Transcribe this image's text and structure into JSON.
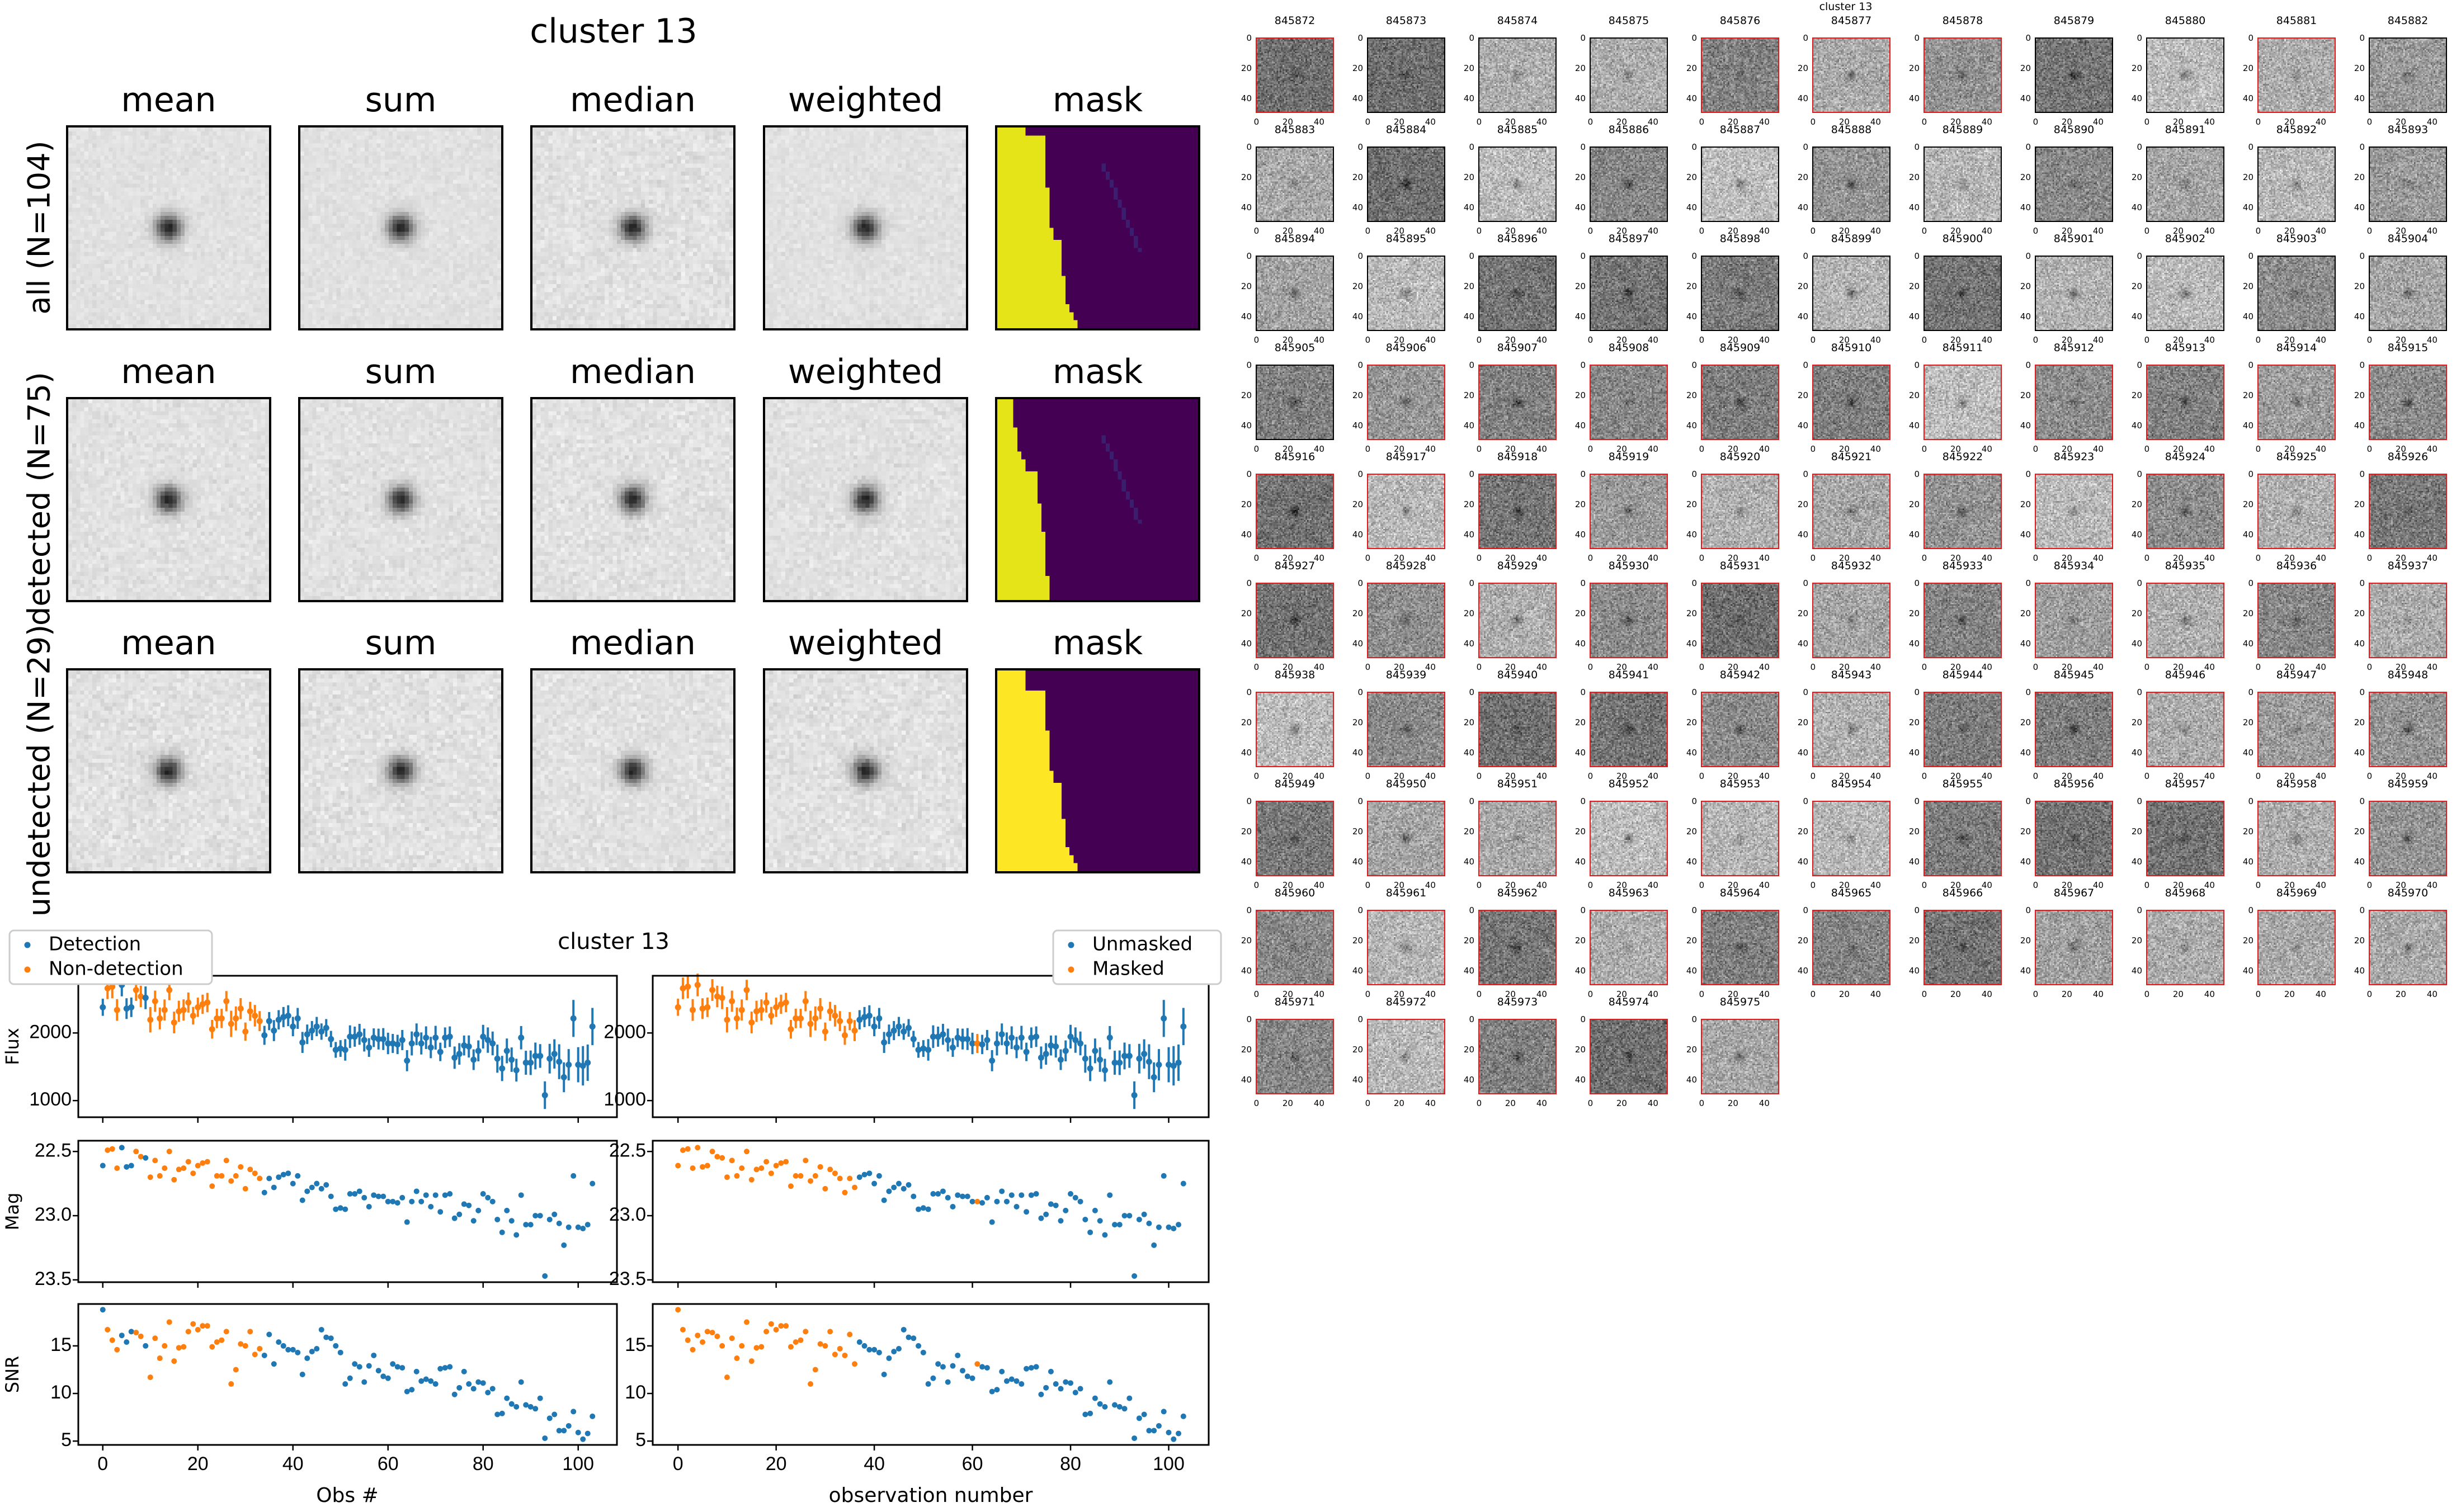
{
  "figure_title": "cluster 13",
  "stack_grid": {
    "columns": [
      "mean",
      "sum",
      "median",
      "weighted",
      "mask"
    ],
    "rows": [
      "all (N=104)",
      "detected (N=75)",
      "undetected (N=29)"
    ],
    "mask_colors": {
      "masked": "#e5e419",
      "unmasked": "#440154"
    }
  },
  "thumbnails": {
    "title": "cluster 13",
    "x_ticks": [
      "0",
      "20",
      "40"
    ],
    "y_ticks": [
      "0",
      "20",
      "40"
    ],
    "highlight_color": "#e31a1c",
    "ids": [
      "845872",
      "845873",
      "845874",
      "845875",
      "845876",
      "845877",
      "845878",
      "845879",
      "845880",
      "845881",
      "845882",
      "845883",
      "845884",
      "845885",
      "845886",
      "845887",
      "845888",
      "845889",
      "845890",
      "845891",
      "845892",
      "845893",
      "845894",
      "845895",
      "845896",
      "845897",
      "845898",
      "845899",
      "845900",
      "845901",
      "845902",
      "845903",
      "845904",
      "845905",
      "845906",
      "845907",
      "845908",
      "845909",
      "845910",
      "845911",
      "845912",
      "845913",
      "845914",
      "845915",
      "845916",
      "845917",
      "845918",
      "845919",
      "845920",
      "845921",
      "845922",
      "845923",
      "845924",
      "845925",
      "845926",
      "845927",
      "845928",
      "845929",
      "845930",
      "845931",
      "845932",
      "845933",
      "845934",
      "845935",
      "845936",
      "845937",
      "845938",
      "845939",
      "845940",
      "845941",
      "845942",
      "845943",
      "845944",
      "845945",
      "845946",
      "845947",
      "845948",
      "845949",
      "845950",
      "845951",
      "845952",
      "845953",
      "845954",
      "845955",
      "845956",
      "845957",
      "845958",
      "845959",
      "845960",
      "845961",
      "845962",
      "845963",
      "845964",
      "845965",
      "845966",
      "845967",
      "845968",
      "845969",
      "845970",
      "845971",
      "845972",
      "845973",
      "845974",
      "845975"
    ]
  },
  "chart_data": {
    "type": "scatter",
    "title": "cluster 13",
    "colors": {
      "blue": "#1f77b4",
      "orange": "#ff7f0e"
    },
    "left_legend": [
      "Detection",
      "Non-detection"
    ],
    "right_legend": [
      "Unmasked",
      "Masked"
    ],
    "left_xlabel": "Obs #",
    "right_xlabel": "observation number",
    "ylabels": {
      "flux": "Flux",
      "mag": "Mag",
      "snr": "SNR"
    },
    "xlim": [
      -5.15,
      108.15
    ],
    "x_ticks": [
      0,
      20,
      40,
      60,
      80,
      100
    ],
    "ylim": {
      "flux": [
        754,
        2846
      ],
      "mag": [
        23.518,
        22.416
      ],
      "snr": [
        4.6,
        19.4
      ]
    },
    "y_ticks": {
      "flux": [
        1000,
        2000
      ],
      "mag": [
        "22.5",
        "23.0",
        "23.5"
      ],
      "snr": [
        5,
        10,
        15
      ]
    },
    "detected": [
      1,
      0,
      0,
      0,
      1,
      1,
      1,
      0,
      0,
      1,
      0,
      0,
      0,
      0,
      0,
      0,
      0,
      0,
      0,
      0,
      0,
      0,
      0,
      0,
      0,
      0,
      0,
      0,
      0,
      0,
      0,
      0,
      0,
      0,
      1,
      1,
      1,
      1,
      1,
      1,
      1,
      1,
      1,
      1,
      1,
      1,
      1,
      1,
      1,
      1,
      1,
      1,
      1,
      1,
      1,
      1,
      1,
      1,
      1,
      1,
      1,
      1,
      1,
      1,
      1,
      1,
      1,
      1,
      1,
      1,
      1,
      1,
      1,
      1,
      1,
      1,
      1,
      1,
      1,
      1,
      1,
      1,
      1,
      1,
      1,
      1,
      1,
      1,
      1,
      1,
      1,
      1,
      1,
      1,
      1,
      1,
      1,
      1,
      1,
      1,
      1,
      1,
      1,
      1
    ],
    "masked": [
      1,
      1,
      1,
      1,
      1,
      1,
      1,
      1,
      1,
      1,
      1,
      1,
      1,
      1,
      1,
      1,
      1,
      1,
      1,
      1,
      1,
      1,
      1,
      1,
      1,
      1,
      1,
      1,
      1,
      1,
      1,
      1,
      1,
      1,
      1,
      1,
      1,
      0,
      0,
      0,
      0,
      0,
      0,
      0,
      0,
      0,
      0,
      0,
      0,
      0,
      0,
      0,
      0,
      0,
      0,
      0,
      0,
      0,
      0,
      0,
      0,
      1,
      0,
      0,
      0,
      0,
      0,
      0,
      0,
      0,
      0,
      0,
      0,
      0,
      0,
      0,
      0,
      0,
      0,
      0,
      0,
      0,
      0,
      0,
      0,
      0,
      0,
      0,
      0,
      0,
      0,
      0,
      0,
      0,
      0,
      0,
      0,
      0,
      0,
      0,
      0,
      0,
      0,
      0
    ],
    "mag": [
      22.61,
      22.49,
      22.48,
      22.63,
      22.47,
      22.62,
      22.61,
      22.5,
      22.54,
      22.55,
      22.7,
      22.57,
      22.69,
      22.63,
      22.5,
      22.72,
      22.64,
      22.63,
      22.58,
      22.67,
      22.61,
      22.59,
      22.58,
      22.77,
      22.69,
      22.69,
      22.57,
      22.73,
      22.69,
      22.62,
      22.79,
      22.64,
      22.67,
      22.71,
      22.82,
      22.71,
      22.78,
      22.7,
      22.68,
      22.67,
      22.75,
      22.69,
      22.88,
      22.81,
      22.78,
      22.75,
      22.79,
      22.76,
      22.85,
      22.95,
      22.94,
      22.95,
      22.83,
      22.83,
      22.81,
      22.86,
      22.93,
      22.84,
      22.85,
      22.85,
      22.89,
      22.89,
      22.9,
      22.86,
      23.05,
      22.89,
      22.81,
      22.89,
      22.84,
      22.93,
      22.84,
      22.97,
      22.84,
      22.83,
      23.02,
      22.99,
      22.91,
      22.92,
      23.04,
      22.96,
      22.83,
      22.86,
      22.89,
      23.03,
      23.13,
      22.96,
      23.04,
      23.15,
      22.84,
      23.07,
      23.07,
      23.0,
      23.0,
      23.47,
      23.03,
      22.99,
      23.06,
      23.23,
      23.09,
      22.69,
      23.09,
      23.1,
      23.07,
      22.75
    ],
    "flux": [
      2380,
      2660,
      2685,
      2340,
      2710,
      2360,
      2380,
      2635,
      2540,
      2520,
      2195,
      2470,
      2215,
      2340,
      2635,
      2155,
      2320,
      2340,
      2450,
      2255,
      2380,
      2425,
      2450,
      2055,
      2215,
      2215,
      2470,
      2135,
      2215,
      2360,
      2020,
      2320,
      2255,
      2175,
      1965,
      2175,
      2035,
      2195,
      2235,
      2255,
      2095,
      2215,
      1860,
      1980,
      2035,
      2095,
      2020,
      2075,
      1910,
      1750,
      1770,
      1750,
      1945,
      1945,
      1980,
      1895,
      1785,
      1930,
      1910,
      1910,
      1845,
      1845,
      1830,
      1895,
      1590,
      1845,
      1980,
      1845,
      1930,
      1785,
      1930,
      1720,
      1930,
      1945,
      1635,
      1690,
      1815,
      1800,
      1605,
      1735,
      1945,
      1895,
      1845,
      1620,
      1475,
      1735,
      1605,
      1450,
      1930,
      1560,
      1560,
      1660,
      1660,
      1080,
      1620,
      1690,
      1575,
      1345,
      1530,
      2215,
      1530,
      1515,
      1560,
      2095
    ],
    "snr": [
      18.8,
      16.7,
      15.6,
      14.6,
      16.1,
      15.4,
      16.5,
      16.4,
      16.0,
      15.0,
      11.7,
      15.8,
      13.7,
      15.0,
      17.5,
      13.4,
      14.8,
      14.9,
      16.5,
      17.3,
      16.7,
      17.1,
      17.1,
      14.9,
      15.4,
      15.6,
      16.5,
      11.0,
      12.5,
      15.2,
      15.0,
      16.5,
      14.1,
      14.7,
      14.0,
      16.2,
      13.1,
      15.4,
      15.0,
      14.6,
      14.6,
      14.3,
      12.0,
      13.7,
      14.4,
      14.7,
      16.7,
      15.9,
      15.8,
      15.0,
      14.3,
      11.0,
      11.6,
      13.1,
      12.8,
      11.2,
      12.9,
      14.0,
      12.4,
      11.8,
      11.6,
      13.1,
      12.8,
      12.7,
      10.2,
      10.4,
      12.3,
      11.3,
      11.5,
      11.3,
      11.0,
      12.6,
      12.7,
      12.8,
      9.9,
      10.6,
      12.3,
      11.0,
      10.5,
      11.2,
      11.1,
      10.1,
      10.5,
      7.8,
      7.9,
      9.5,
      8.9,
      8.6,
      11.2,
      8.8,
      8.6,
      8.4,
      9.5,
      5.3,
      7.4,
      7.8,
      6.1,
      6.1,
      6.6,
      8.1,
      5.9,
      5.2,
      5.8,
      7.6
    ]
  }
}
